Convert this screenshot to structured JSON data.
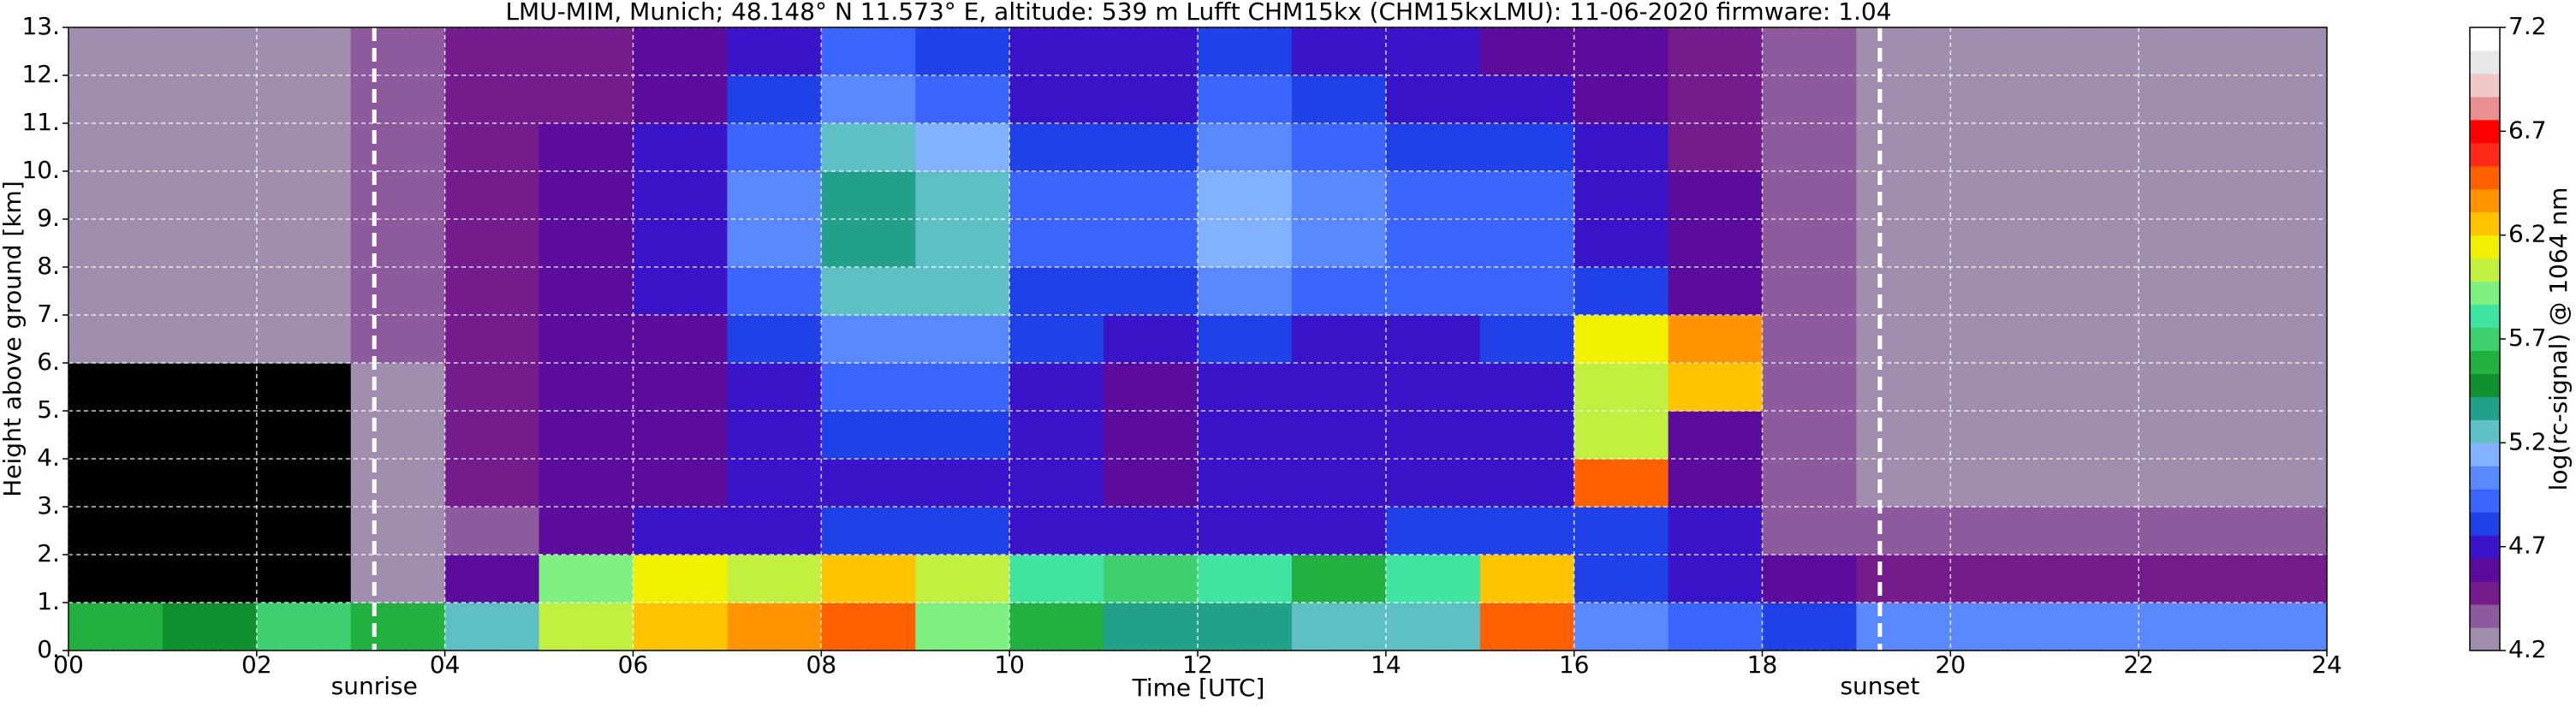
{
  "chart_data": {
    "type": "heatmap",
    "title": "LMU-MIM, Munich; 48.148° N 11.573° E, altitude: 539 m    Lufft CHM15kx (CHM15kxLMU): 11-06-2020    firmware: 1.04",
    "x_label": "Time [UTC]",
    "y_label": "Height above ground [km]",
    "colorbar_label": "log(rc-signal) @ 1064 nm",
    "xlim": [
      0,
      24
    ],
    "xticks": [
      {
        "value": 0,
        "label": "00"
      },
      {
        "value": 2,
        "label": "02"
      },
      {
        "value": 4,
        "label": "04"
      },
      {
        "value": 6,
        "label": "06"
      },
      {
        "value": 8,
        "label": "08"
      },
      10,
      12,
      14,
      16,
      18,
      20,
      22,
      24
    ],
    "ylim": [
      0,
      13
    ],
    "yticks": [
      {
        "value": 0,
        "label": "0."
      },
      {
        "value": 1,
        "label": "1."
      },
      {
        "value": 2,
        "label": "2."
      },
      {
        "value": 3,
        "label": "3."
      },
      {
        "value": 4,
        "label": "4."
      },
      {
        "value": 5,
        "label": "5."
      },
      {
        "value": 6,
        "label": "6."
      },
      {
        "value": 7,
        "label": "7."
      },
      {
        "value": 8,
        "label": "8."
      },
      {
        "value": 9,
        "label": "9."
      },
      {
        "value": 10,
        "label": "10."
      },
      {
        "value": 11,
        "label": "11."
      },
      {
        "value": 12,
        "label": "12."
      },
      {
        "value": 13,
        "label": "13."
      }
    ],
    "clim": [
      4.2,
      7.2
    ],
    "cticks": [
      4.2,
      4.7,
      5.2,
      5.7,
      6.2,
      6.7,
      7.2
    ],
    "colormap": [
      "#a08eae",
      "#8e5a9e",
      "#741c8c",
      "#5c0c9c",
      "#3a14c8",
      "#2040e8",
      "#3a66ff",
      "#5a88ff",
      "#82b2ff",
      "#5ec0c4",
      "#22a08a",
      "#10902e",
      "#22b040",
      "#3ed070",
      "#40e4a0",
      "#7ef082",
      "#c2f040",
      "#f0f000",
      "#ffc400",
      "#ff9400",
      "#ff6000",
      "#ff2a1a",
      "#ff0000",
      "#e89090",
      "#f0c8c8",
      "#e8e8e8",
      "#ffffff"
    ],
    "under_color": "#000000",
    "grid": true,
    "events": [
      {
        "x": 3.25,
        "label": "sunrise"
      },
      {
        "x": 19.25,
        "label": "sunset"
      }
    ],
    "z": [
      [
        5.6,
        5.5,
        5.7,
        5.6,
        5.2,
        6.0,
        6.3,
        6.4,
        6.5,
        5.9,
        5.6,
        5.4,
        5.4,
        5.3,
        5.3,
        6.5,
        5.0,
        4.9,
        4.8,
        5.0,
        5.0,
        5.0,
        5.0,
        5.0
      ],
      [
        4.0,
        4.0,
        4.0,
        4.3,
        4.6,
        5.9,
        6.1,
        6.0,
        6.2,
        6.0,
        5.8,
        5.7,
        5.8,
        5.6,
        5.8,
        6.3,
        4.8,
        4.7,
        4.6,
        4.5,
        4.5,
        4.5,
        4.5,
        4.5
      ],
      [
        4.0,
        4.0,
        4.0,
        4.3,
        4.4,
        4.6,
        4.7,
        4.7,
        4.8,
        4.8,
        4.7,
        4.7,
        4.7,
        4.7,
        4.8,
        4.8,
        4.8,
        4.7,
        4.4,
        4.4,
        4.4,
        4.4,
        4.4,
        4.4
      ],
      [
        4.0,
        4.0,
        4.0,
        4.3,
        4.5,
        4.6,
        4.6,
        4.7,
        4.7,
        4.7,
        4.7,
        4.6,
        4.7,
        4.7,
        4.7,
        4.7,
        6.5,
        4.6,
        4.4,
        4.3,
        4.3,
        4.3,
        4.3,
        4.3
      ],
      [
        4.0,
        4.0,
        4.0,
        4.3,
        4.5,
        4.6,
        4.6,
        4.7,
        4.8,
        4.8,
        4.7,
        4.6,
        4.7,
        4.7,
        4.7,
        4.7,
        6.0,
        4.6,
        4.4,
        4.3,
        4.3,
        4.3,
        4.3,
        4.3
      ],
      [
        4.0,
        4.0,
        4.0,
        4.3,
        4.5,
        4.6,
        4.6,
        4.7,
        4.9,
        4.9,
        4.7,
        4.6,
        4.7,
        4.7,
        4.7,
        4.7,
        6.0,
        6.2,
        4.4,
        4.3,
        4.3,
        4.3,
        4.3,
        4.3
      ],
      [
        4.3,
        4.3,
        4.3,
        4.4,
        4.5,
        4.6,
        4.6,
        4.8,
        5.0,
        5.0,
        4.8,
        4.7,
        4.8,
        4.7,
        4.7,
        4.8,
        6.1,
        6.4,
        4.4,
        4.3,
        4.3,
        4.3,
        4.3,
        4.3
      ],
      [
        4.3,
        4.3,
        4.3,
        4.4,
        4.5,
        4.6,
        4.7,
        4.9,
        5.3,
        5.2,
        4.8,
        4.8,
        5.0,
        4.9,
        4.9,
        4.9,
        4.8,
        4.6,
        4.4,
        4.3,
        4.3,
        4.3,
        4.3,
        4.3
      ],
      [
        4.3,
        4.3,
        4.3,
        4.4,
        4.5,
        4.6,
        4.7,
        5.0,
        5.4,
        5.3,
        4.9,
        4.9,
        5.1,
        5.0,
        4.9,
        4.9,
        4.7,
        4.6,
        4.4,
        4.3,
        4.3,
        4.3,
        4.3,
        4.3
      ],
      [
        4.3,
        4.3,
        4.3,
        4.4,
        4.5,
        4.6,
        4.7,
        5.0,
        5.4,
        5.2,
        4.9,
        4.9,
        5.1,
        5.0,
        4.9,
        4.9,
        4.7,
        4.6,
        4.4,
        4.3,
        4.3,
        4.3,
        4.3,
        4.3
      ],
      [
        4.3,
        4.3,
        4.3,
        4.4,
        4.5,
        4.6,
        4.7,
        4.9,
        5.2,
        5.1,
        4.8,
        4.8,
        5.0,
        4.9,
        4.8,
        4.8,
        4.7,
        4.5,
        4.4,
        4.3,
        4.3,
        4.3,
        4.3,
        4.3
      ],
      [
        4.3,
        4.3,
        4.3,
        4.4,
        4.5,
        4.5,
        4.6,
        4.8,
        5.0,
        4.9,
        4.7,
        4.7,
        4.9,
        4.8,
        4.7,
        4.7,
        4.6,
        4.5,
        4.4,
        4.3,
        4.3,
        4.3,
        4.3,
        4.3
      ],
      [
        4.3,
        4.3,
        4.3,
        4.4,
        4.5,
        4.5,
        4.6,
        4.7,
        4.9,
        4.8,
        4.7,
        4.7,
        4.8,
        4.7,
        4.7,
        4.6,
        4.6,
        4.5,
        4.4,
        4.3,
        4.3,
        4.3,
        4.3,
        4.3
      ]
    ]
  }
}
